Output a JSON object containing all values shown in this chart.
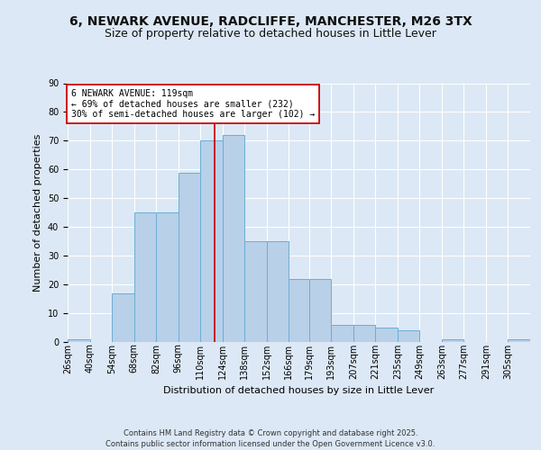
{
  "title1": "6, NEWARK AVENUE, RADCLIFFE, MANCHESTER, M26 3TX",
  "title2": "Size of property relative to detached houses in Little Lever",
  "xlabel": "Distribution of detached houses by size in Little Lever",
  "ylabel": "Number of detached properties",
  "bins": [
    "26sqm",
    "40sqm",
    "54sqm",
    "68sqm",
    "82sqm",
    "96sqm",
    "110sqm",
    "124sqm",
    "138sqm",
    "152sqm",
    "166sqm",
    "179sqm",
    "193sqm",
    "207sqm",
    "221sqm",
    "235sqm",
    "249sqm",
    "263sqm",
    "277sqm",
    "291sqm",
    "305sqm"
  ],
  "bar_values": [
    1,
    0,
    17,
    45,
    45,
    59,
    70,
    72,
    35,
    35,
    22,
    22,
    6,
    6,
    5,
    4,
    0,
    1,
    0,
    0,
    1
  ],
  "bar_face_color": "#b8d0e8",
  "bar_edge_color": "#6aaed6",
  "vline_x": 119,
  "vline_color": "#cc0000",
  "annotation_text": "6 NEWARK AVENUE: 119sqm\n← 69% of detached houses are smaller (232)\n30% of semi-detached houses are larger (102) →",
  "annotation_box_color": "#ffffff",
  "annotation_box_edge": "#cc0000",
  "bg_color": "#dce8f5",
  "plot_bg_color": "#dce8f5",
  "footer": "Contains HM Land Registry data © Crown copyright and database right 2025.\nContains public sector information licensed under the Open Government Licence v3.0.",
  "ylim": [
    0,
    90
  ],
  "yticks": [
    0,
    10,
    20,
    30,
    40,
    50,
    60,
    70,
    80,
    90
  ],
  "grid_color": "#ffffff",
  "title_fontsize": 10,
  "subtitle_fontsize": 9,
  "tick_fontsize": 7,
  "ylabel_fontsize": 8,
  "xlabel_fontsize": 8
}
